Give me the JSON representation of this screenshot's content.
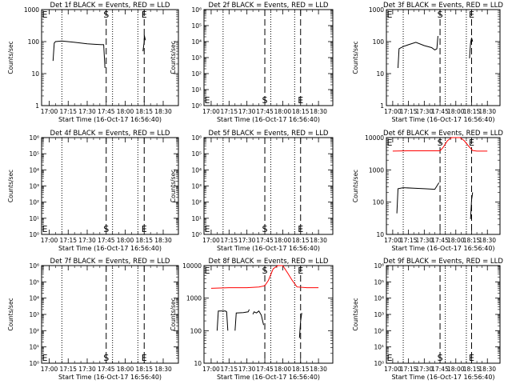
{
  "time_axis": {
    "ticks": [
      "17:00",
      "17:15",
      "17:30",
      "17:45",
      "18:00",
      "18:15",
      "18:30"
    ],
    "tick_minutes": [
      1020,
      1035,
      1050,
      1065,
      1080,
      1095,
      1110
    ],
    "range_minutes": [
      1014,
      1122
    ],
    "xlabel": "Start Time (16-Oct-17 16:56:40)"
  },
  "ylabel": "Counts/sec",
  "markers": {
    "start_label": "S",
    "end_label": "E",
    "start_time": "17:45",
    "end_time": "18:15",
    "dotted_times": [
      "17:10",
      "17:50",
      "18:10"
    ]
  },
  "colors": {
    "events": "#000000",
    "lld": "#ff0000"
  },
  "chart_data": [
    {
      "type": "line",
      "title": "Det 1f BLACK = Events, RED = LLD",
      "yscale": "log",
      "ylim": [
        1,
        1000
      ],
      "yticks": [
        1,
        10,
        100,
        1000
      ],
      "ytick_labels": [
        "1",
        "10",
        "100",
        "1000"
      ],
      "markers_at_top": true,
      "series": [
        {
          "name": "Events",
          "color": "black",
          "segments": [
            {
              "x": [
                "17:03",
                "17:04",
                "17:05",
                "17:10",
                "17:20",
                "17:30",
                "17:36",
                "17:43",
                "17:44"
              ],
              "y": [
                25,
                90,
                100,
                105,
                95,
                85,
                82,
                80,
                15
              ]
            },
            {
              "x": [
                "18:14",
                "18:15",
                "18:15",
                "18:16"
              ],
              "y": [
                50,
                100,
                160,
                110
              ]
            }
          ]
        }
      ]
    },
    {
      "type": "line",
      "title": "Det 2f BLACK = Events, RED = LLD",
      "yscale": "log",
      "ylim": [
        1,
        1000000
      ],
      "yticks": [
        1,
        10,
        100,
        1000,
        10000,
        100000,
        1000000
      ],
      "ytick_labels": [
        "10⁰",
        "10¹",
        "10²",
        "10³",
        "10⁴",
        "10⁵",
        "10⁶"
      ],
      "markers_at_top": false,
      "series": []
    },
    {
      "type": "line",
      "title": "Det 3f BLACK = Events, RED = LLD",
      "yscale": "log",
      "ylim": [
        1,
        1000
      ],
      "yticks": [
        1,
        10,
        100,
        1000
      ],
      "ytick_labels": [
        "1",
        "10",
        "100",
        "1000"
      ],
      "markers_at_top": true,
      "series": [
        {
          "name": "Events",
          "color": "black",
          "segments": [
            {
              "x": [
                "17:05",
                "17:06",
                "17:10",
                "17:15",
                "17:22",
                "17:30",
                "17:37",
                "17:40",
                "17:42",
                "17:43"
              ],
              "y": [
                15,
                60,
                70,
                80,
                95,
                75,
                65,
                55,
                60,
                150
              ]
            },
            {
              "x": [
                "18:13",
                "18:14",
                "18:15",
                "18:16"
              ],
              "y": [
                30,
                90,
                130,
                100
              ]
            }
          ]
        }
      ]
    },
    {
      "type": "line",
      "title": "Det 4f BLACK = Events, RED = LLD",
      "yscale": "log",
      "ylim": [
        1,
        1000000
      ],
      "yticks": [
        1,
        10,
        100,
        1000,
        10000,
        100000,
        1000000
      ],
      "ytick_labels": [
        "10⁰",
        "10¹",
        "10²",
        "10³",
        "10⁴",
        "10⁵",
        "10⁶"
      ],
      "markers_at_top": false,
      "series": []
    },
    {
      "type": "line",
      "title": "Det 5f BLACK = Events, RED = LLD",
      "yscale": "log",
      "ylim": [
        1,
        1000000
      ],
      "yticks": [
        1,
        10,
        100,
        1000,
        10000,
        100000,
        1000000
      ],
      "ytick_labels": [
        "10⁰",
        "10¹",
        "10²",
        "10³",
        "10⁴",
        "10⁵",
        "10⁶"
      ],
      "markers_at_top": false,
      "series": []
    },
    {
      "type": "line",
      "title": "Det 6f BLACK = Events, RED = LLD",
      "yscale": "log",
      "ylim": [
        10,
        10000
      ],
      "yticks": [
        10,
        100,
        1000,
        10000
      ],
      "ytick_labels": [
        "10",
        "100",
        "1000",
        "10000"
      ],
      "markers_at_top": true,
      "series": [
        {
          "name": "Events",
          "color": "black",
          "segments": [
            {
              "x": [
                "17:04",
                "17:05",
                "17:10",
                "17:20",
                "17:30",
                "17:40",
                "17:44"
              ],
              "y": [
                45,
                260,
                280,
                270,
                260,
                250,
                400
              ]
            },
            {
              "x": [
                "18:14",
                "18:15",
                "18:16"
              ],
              "y": [
                30,
                120,
                200
              ]
            }
          ]
        },
        {
          "name": "LLD",
          "color": "red",
          "segments": [
            {
              "x": [
                "17:00",
                "17:15",
                "17:30",
                "17:45",
                "17:48",
                "17:52",
                "17:56",
                "18:00",
                "18:04",
                "18:08",
                "18:12",
                "18:16",
                "18:20",
                "18:30"
              ],
              "y": [
                3800,
                3900,
                3900,
                3900,
                5000,
                8000,
                11000,
                12000,
                10000,
                8000,
                5500,
                4000,
                3800,
                3800
              ]
            }
          ]
        }
      ]
    },
    {
      "type": "line",
      "title": "Det 7f BLACK = Events, RED = LLD",
      "yscale": "log",
      "ylim": [
        1,
        1000000
      ],
      "yticks": [
        1,
        10,
        100,
        1000,
        10000,
        100000,
        1000000
      ],
      "ytick_labels": [
        "10⁰",
        "10¹",
        "10²",
        "10³",
        "10⁴",
        "10⁵",
        "10⁶"
      ],
      "markers_at_top": false,
      "series": []
    },
    {
      "type": "line",
      "title": "Det 8f BLACK = Events, RED = LLD",
      "yscale": "log",
      "ylim": [
        10,
        10000
      ],
      "yticks": [
        10,
        100,
        1000,
        10000
      ],
      "ytick_labels": [
        "10",
        "100",
        "1000",
        "10000"
      ],
      "markers_at_top": true,
      "series": [
        {
          "name": "Events",
          "color": "black",
          "segments": [
            {
              "x": [
                "17:05",
                "17:06",
                "17:12",
                "17:13",
                "17:14"
              ],
              "y": [
                100,
                400,
                400,
                380,
                100
              ]
            },
            {
              "x": [
                "17:20",
                "17:21",
                "17:27",
                "17:31",
                "17:32"
              ],
              "y": [
                100,
                350,
                360,
                380,
                450
              ]
            },
            {
              "x": [
                "17:35",
                "17:36",
                "17:38",
                "17:40",
                "17:42",
                "17:44"
              ],
              "y": [
                320,
                380,
                350,
                400,
                300,
                150
              ]
            },
            {
              "x": [
                "18:14",
                "18:15",
                "18:16"
              ],
              "y": [
                60,
                200,
                350
              ]
            }
          ]
        },
        {
          "name": "LLD",
          "color": "red",
          "segments": [
            {
              "x": [
                "17:00",
                "17:15",
                "17:30",
                "17:40",
                "17:45",
                "17:48",
                "17:52",
                "17:56",
                "18:00",
                "18:04",
                "18:08",
                "18:12",
                "18:20",
                "18:30"
              ],
              "y": [
                2000,
                2100,
                2100,
                2200,
                2400,
                3500,
                8000,
                14000,
                13000,
                6000,
                3500,
                2200,
                2100,
                2100
              ]
            }
          ]
        }
      ]
    },
    {
      "type": "line",
      "title": "Det 9f BLACK = Events, RED = LLD",
      "yscale": "log",
      "ylim": [
        1,
        1000000
      ],
      "yticks": [
        1,
        10,
        100,
        1000,
        10000,
        100000,
        1000000
      ],
      "ytick_labels": [
        "10⁰",
        "10¹",
        "10²",
        "10³",
        "10⁴",
        "10⁵",
        "10⁶"
      ],
      "markers_at_top": false,
      "series": []
    }
  ]
}
